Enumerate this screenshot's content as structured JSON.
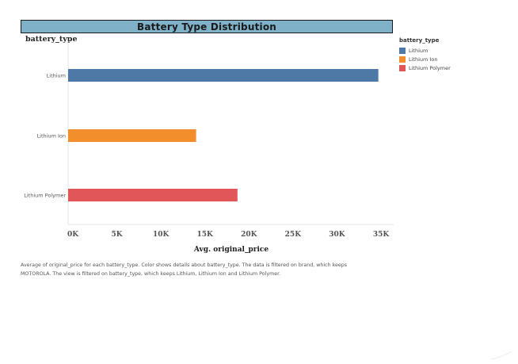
{
  "chart_data": {
    "type": "bar",
    "orientation": "horizontal",
    "title": "Battery Type Distribution",
    "row_header": "battery_type",
    "xlabel": "Avg. original_price",
    "categories": [
      "Lithium",
      "Lithium Ion",
      "Lithium Polymer"
    ],
    "values": [
      34700,
      14000,
      18700
    ],
    "colors": [
      "#4e79a7",
      "#f28e2b",
      "#e15759"
    ],
    "xlim": [
      0,
      36000
    ],
    "x_ticks": [
      0,
      5000,
      10000,
      15000,
      20000,
      25000,
      30000,
      35000
    ],
    "x_tick_labels": [
      "0K",
      "5K",
      "10K",
      "15K",
      "20K",
      "25K",
      "30K",
      "35K"
    ],
    "grid": false,
    "legend": {
      "title": "battery_type",
      "position": "right",
      "items": [
        "Lithium",
        "Lithium Ion",
        "Lithium Polymer"
      ]
    }
  },
  "caption": "Average of original_price for each battery_type.  Color shows details about battery_type. The data is filtered on brand, which keeps MOTOROLA. The view is filtered on battery_type, which keeps Lithium, Lithium Ion and Lithium Polymer."
}
